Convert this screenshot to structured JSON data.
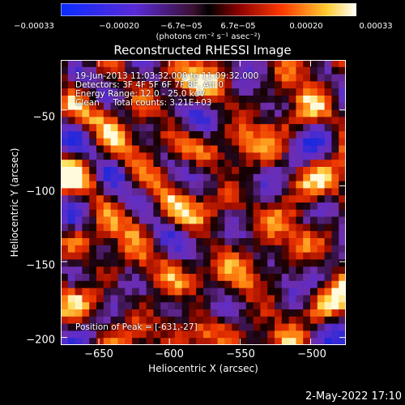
{
  "chart_data": {
    "type": "heatmap",
    "title": "Reconstructed RHESSI Image",
    "xlabel": "Heliocentric X (arcsec)",
    "ylabel": "Heliocentric Y (arcsec)",
    "xlim": [
      -677,
      -475
    ],
    "ylim": [
      -205,
      -17
    ],
    "x_ticks": [
      "−650",
      "−600",
      "−550",
      "−500"
    ],
    "x_tick_values": [
      -650,
      -600,
      -550,
      -500
    ],
    "y_ticks": [
      "−50",
      "−100",
      "−150",
      "−200"
    ],
    "y_tick_values": [
      -50,
      -100,
      -150,
      -200
    ],
    "colorbar": {
      "ticks": [
        "−0.00033",
        "−0.00020",
        "−6.7e−05",
        "6.7e−05",
        "0.00020",
        "0.00033"
      ],
      "units": "(photons cm⁻² s⁻¹ asec⁻²)",
      "range": [
        -0.00033,
        0.00033
      ]
    },
    "annotations": [
      "19-Jun-2013 11:03:32.000 to 11:09:32.000",
      "Detectors: 3F 4F 5F 6F 7F 8F, Att 0",
      "Energy Range: 12.0 - 25.0 keV",
      "Clean     Total counts: 3.21E+03"
    ],
    "peak_text": "Position of Peak = [-631,-27]",
    "peak": [
      -631,
      -27
    ]
  },
  "datestamp": "2-May-2022 17:10",
  "colors": {
    "background": "#000000",
    "text": "#ffffff",
    "colorbar_low": "#0a2cff",
    "colorbar_high": "#ffffff"
  }
}
